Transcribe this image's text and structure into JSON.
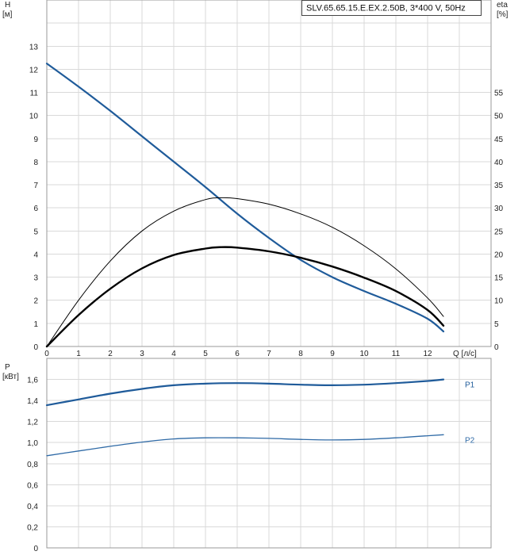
{
  "chart_data": [
    {
      "type": "line",
      "title": "SLV.65.65.15.E.EX.2.50B, 3*400 V, 50Hz",
      "ylabel": "H",
      "yunit": "[м]",
      "ylabel_right": "eta",
      "yunit_right": "[%]",
      "xlabel": "Q [л/с]",
      "xlim": [
        0,
        14
      ],
      "ylim": [
        0,
        15
      ],
      "ylim_right": [
        0,
        75
      ],
      "x_ticks": [
        0,
        1,
        2,
        3,
        4,
        5,
        6,
        7,
        8,
        9,
        10,
        11,
        12
      ],
      "y_ticks": [
        0,
        1,
        2,
        3,
        4,
        5,
        6,
        7,
        8,
        9,
        10,
        11,
        12,
        13
      ],
      "y_ticks_right": [
        0,
        5,
        10,
        15,
        20,
        25,
        30,
        35,
        40,
        45,
        50,
        55
      ],
      "grid": true,
      "colors": {
        "head": "#1f5b9a",
        "eta": "#000000"
      },
      "series": [
        {
          "axis": "left",
          "style": "head",
          "x": [
            0,
            1,
            2,
            3,
            4,
            5,
            6,
            7,
            8,
            9,
            10,
            11,
            12,
            12.5
          ],
          "values": [
            12.25,
            11.25,
            10.2,
            9.1,
            8.0,
            6.9,
            5.75,
            4.7,
            3.75,
            3.0,
            2.4,
            1.85,
            1.2,
            0.65
          ]
        },
        {
          "axis": "right",
          "style": "eta_thin",
          "x": [
            0,
            1,
            2,
            3,
            4,
            5,
            5.5,
            6,
            7,
            8,
            9,
            10,
            11,
            12,
            12.5
          ],
          "values": [
            0,
            10,
            18.5,
            25,
            29.3,
            31.8,
            32.2,
            32.0,
            30.8,
            28.7,
            25.8,
            21.8,
            16.8,
            10.5,
            6.5
          ]
        },
        {
          "axis": "right",
          "style": "eta_thick",
          "x": [
            0,
            1,
            2,
            3,
            4,
            5,
            5.5,
            6,
            7,
            8,
            9,
            10,
            11,
            12,
            12.5
          ],
          "values": [
            0,
            6.8,
            12.5,
            16.9,
            19.8,
            21.2,
            21.5,
            21.4,
            20.6,
            19.2,
            17.3,
            14.9,
            12.0,
            7.9,
            4.5
          ]
        }
      ]
    },
    {
      "type": "line",
      "ylabel": "P",
      "yunit": "[кВт]",
      "xlim": [
        0,
        14
      ],
      "ylim": [
        0,
        1.8
      ],
      "y_ticks": [
        "0",
        "0,2",
        "0,4",
        "0,6",
        "0,8",
        "1,0",
        "1,2",
        "1,4",
        "1,6"
      ],
      "y_tick_values": [
        0,
        0.2,
        0.4,
        0.6,
        0.8,
        1.0,
        1.2,
        1.4,
        1.6
      ],
      "grid": true,
      "colors": {
        "P1": "#1f5b9a",
        "P2": "#2f6aa6"
      },
      "series": [
        {
          "name": "P1",
          "x": [
            0,
            1,
            2,
            3,
            4,
            5,
            6,
            7,
            8,
            9,
            10,
            11,
            12,
            12.5
          ],
          "values": [
            1.355,
            1.41,
            1.465,
            1.51,
            1.545,
            1.56,
            1.565,
            1.56,
            1.55,
            1.545,
            1.55,
            1.565,
            1.585,
            1.6
          ]
        },
        {
          "name": "P2",
          "x": [
            0,
            1,
            2,
            3,
            4,
            5,
            6,
            7,
            8,
            9,
            10,
            11,
            12,
            12.5
          ],
          "values": [
            0.875,
            0.92,
            0.965,
            1.005,
            1.035,
            1.045,
            1.045,
            1.04,
            1.03,
            1.025,
            1.03,
            1.045,
            1.065,
            1.075
          ]
        }
      ]
    }
  ]
}
